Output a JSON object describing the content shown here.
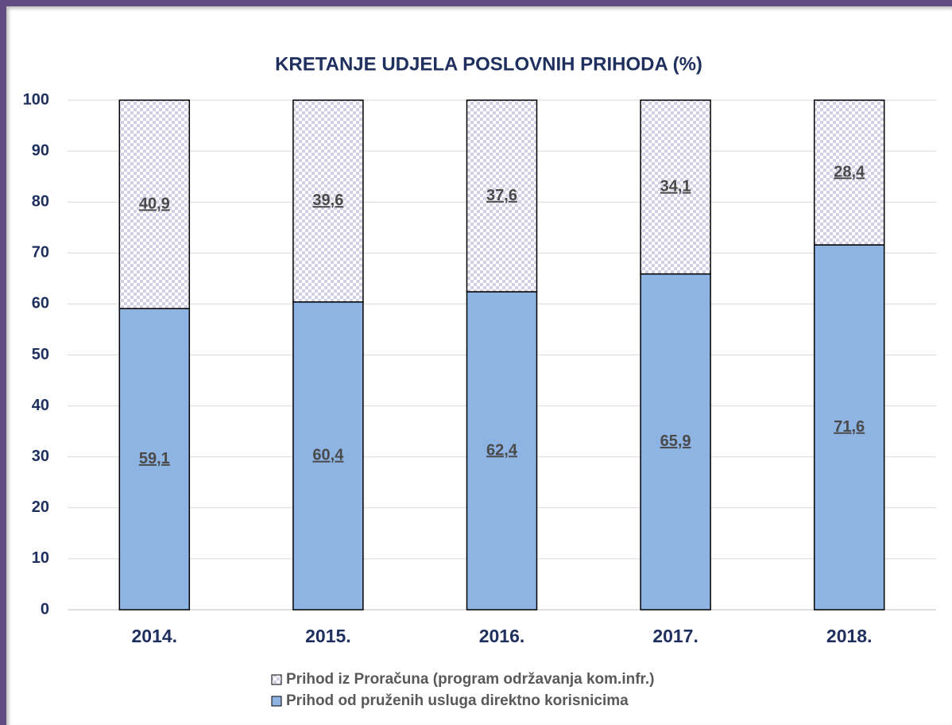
{
  "chart_data": {
    "type": "stacked_bar",
    "title": "KRETANJE UDJELA POSLOVNIH PRIHODA (%)",
    "categories": [
      "2014.",
      "2015.",
      "2016.",
      "2017.",
      "2018."
    ],
    "series": [
      {
        "name": "Prihod od pruženih usluga direktno korisnicima",
        "color": "#8eb4e3",
        "values": [
          59.1,
          60.4,
          62.4,
          65.9,
          71.6
        ],
        "value_labels": [
          "59,1",
          "60,4",
          "62,4",
          "65,9",
          "71,6"
        ]
      },
      {
        "name": "Prihod iz Proračuna (program održavanja kom.infr.)",
        "color": "#d5cfe6",
        "pattern": "checker",
        "values": [
          40.9,
          39.6,
          37.6,
          34.1,
          28.4
        ],
        "value_labels": [
          "40,9",
          "39,6",
          "37,6",
          "34,1",
          "28,4"
        ]
      }
    ],
    "ylim": [
      0,
      100
    ],
    "yticks": [
      0,
      10,
      20,
      30,
      40,
      50,
      60,
      70,
      80,
      90,
      100
    ],
    "grid": true
  }
}
